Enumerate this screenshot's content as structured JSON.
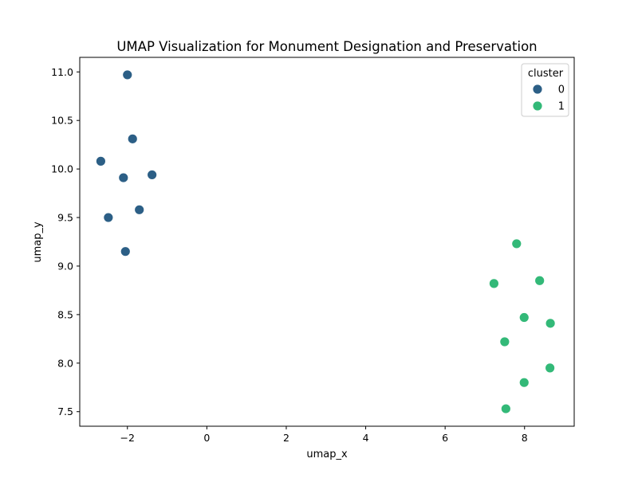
{
  "chart_data": {
    "type": "scatter",
    "title": "UMAP Visualization for Monument Designation and Preservation",
    "xlabel": "umap_x",
    "ylabel": "umap_y",
    "xlim": [
      -3.2,
      9.25
    ],
    "ylim": [
      7.35,
      11.15
    ],
    "xticks": [
      -2,
      0,
      2,
      4,
      6,
      8
    ],
    "yticks": [
      7.5,
      8.0,
      8.5,
      9.0,
      9.5,
      10.0,
      10.5,
      11.0
    ],
    "xtick_labels": [
      "−2",
      "0",
      "2",
      "4",
      "6",
      "8"
    ],
    "ytick_labels": [
      "7.5",
      "8.0",
      "8.5",
      "9.0",
      "9.5",
      "10.0",
      "10.5",
      "11.0"
    ],
    "grid": false,
    "legend": {
      "title": "cluster",
      "placement": "top-right"
    },
    "series": [
      {
        "name": "0",
        "color": "#2c5f86",
        "points": [
          {
            "x": -2.0,
            "y": 10.97
          },
          {
            "x": -1.87,
            "y": 10.31
          },
          {
            "x": -2.67,
            "y": 10.08
          },
          {
            "x": -2.1,
            "y": 9.91
          },
          {
            "x": -1.38,
            "y": 9.94
          },
          {
            "x": -1.7,
            "y": 9.58
          },
          {
            "x": -2.48,
            "y": 9.5
          },
          {
            "x": -2.05,
            "y": 9.15
          }
        ]
      },
      {
        "name": "1",
        "color": "#33b978",
        "points": [
          {
            "x": 7.8,
            "y": 9.23
          },
          {
            "x": 7.23,
            "y": 8.82
          },
          {
            "x": 8.38,
            "y": 8.85
          },
          {
            "x": 7.99,
            "y": 8.47
          },
          {
            "x": 8.65,
            "y": 8.41
          },
          {
            "x": 7.5,
            "y": 8.22
          },
          {
            "x": 8.64,
            "y": 7.95
          },
          {
            "x": 7.99,
            "y": 7.8
          },
          {
            "x": 7.53,
            "y": 7.53
          }
        ]
      }
    ]
  }
}
